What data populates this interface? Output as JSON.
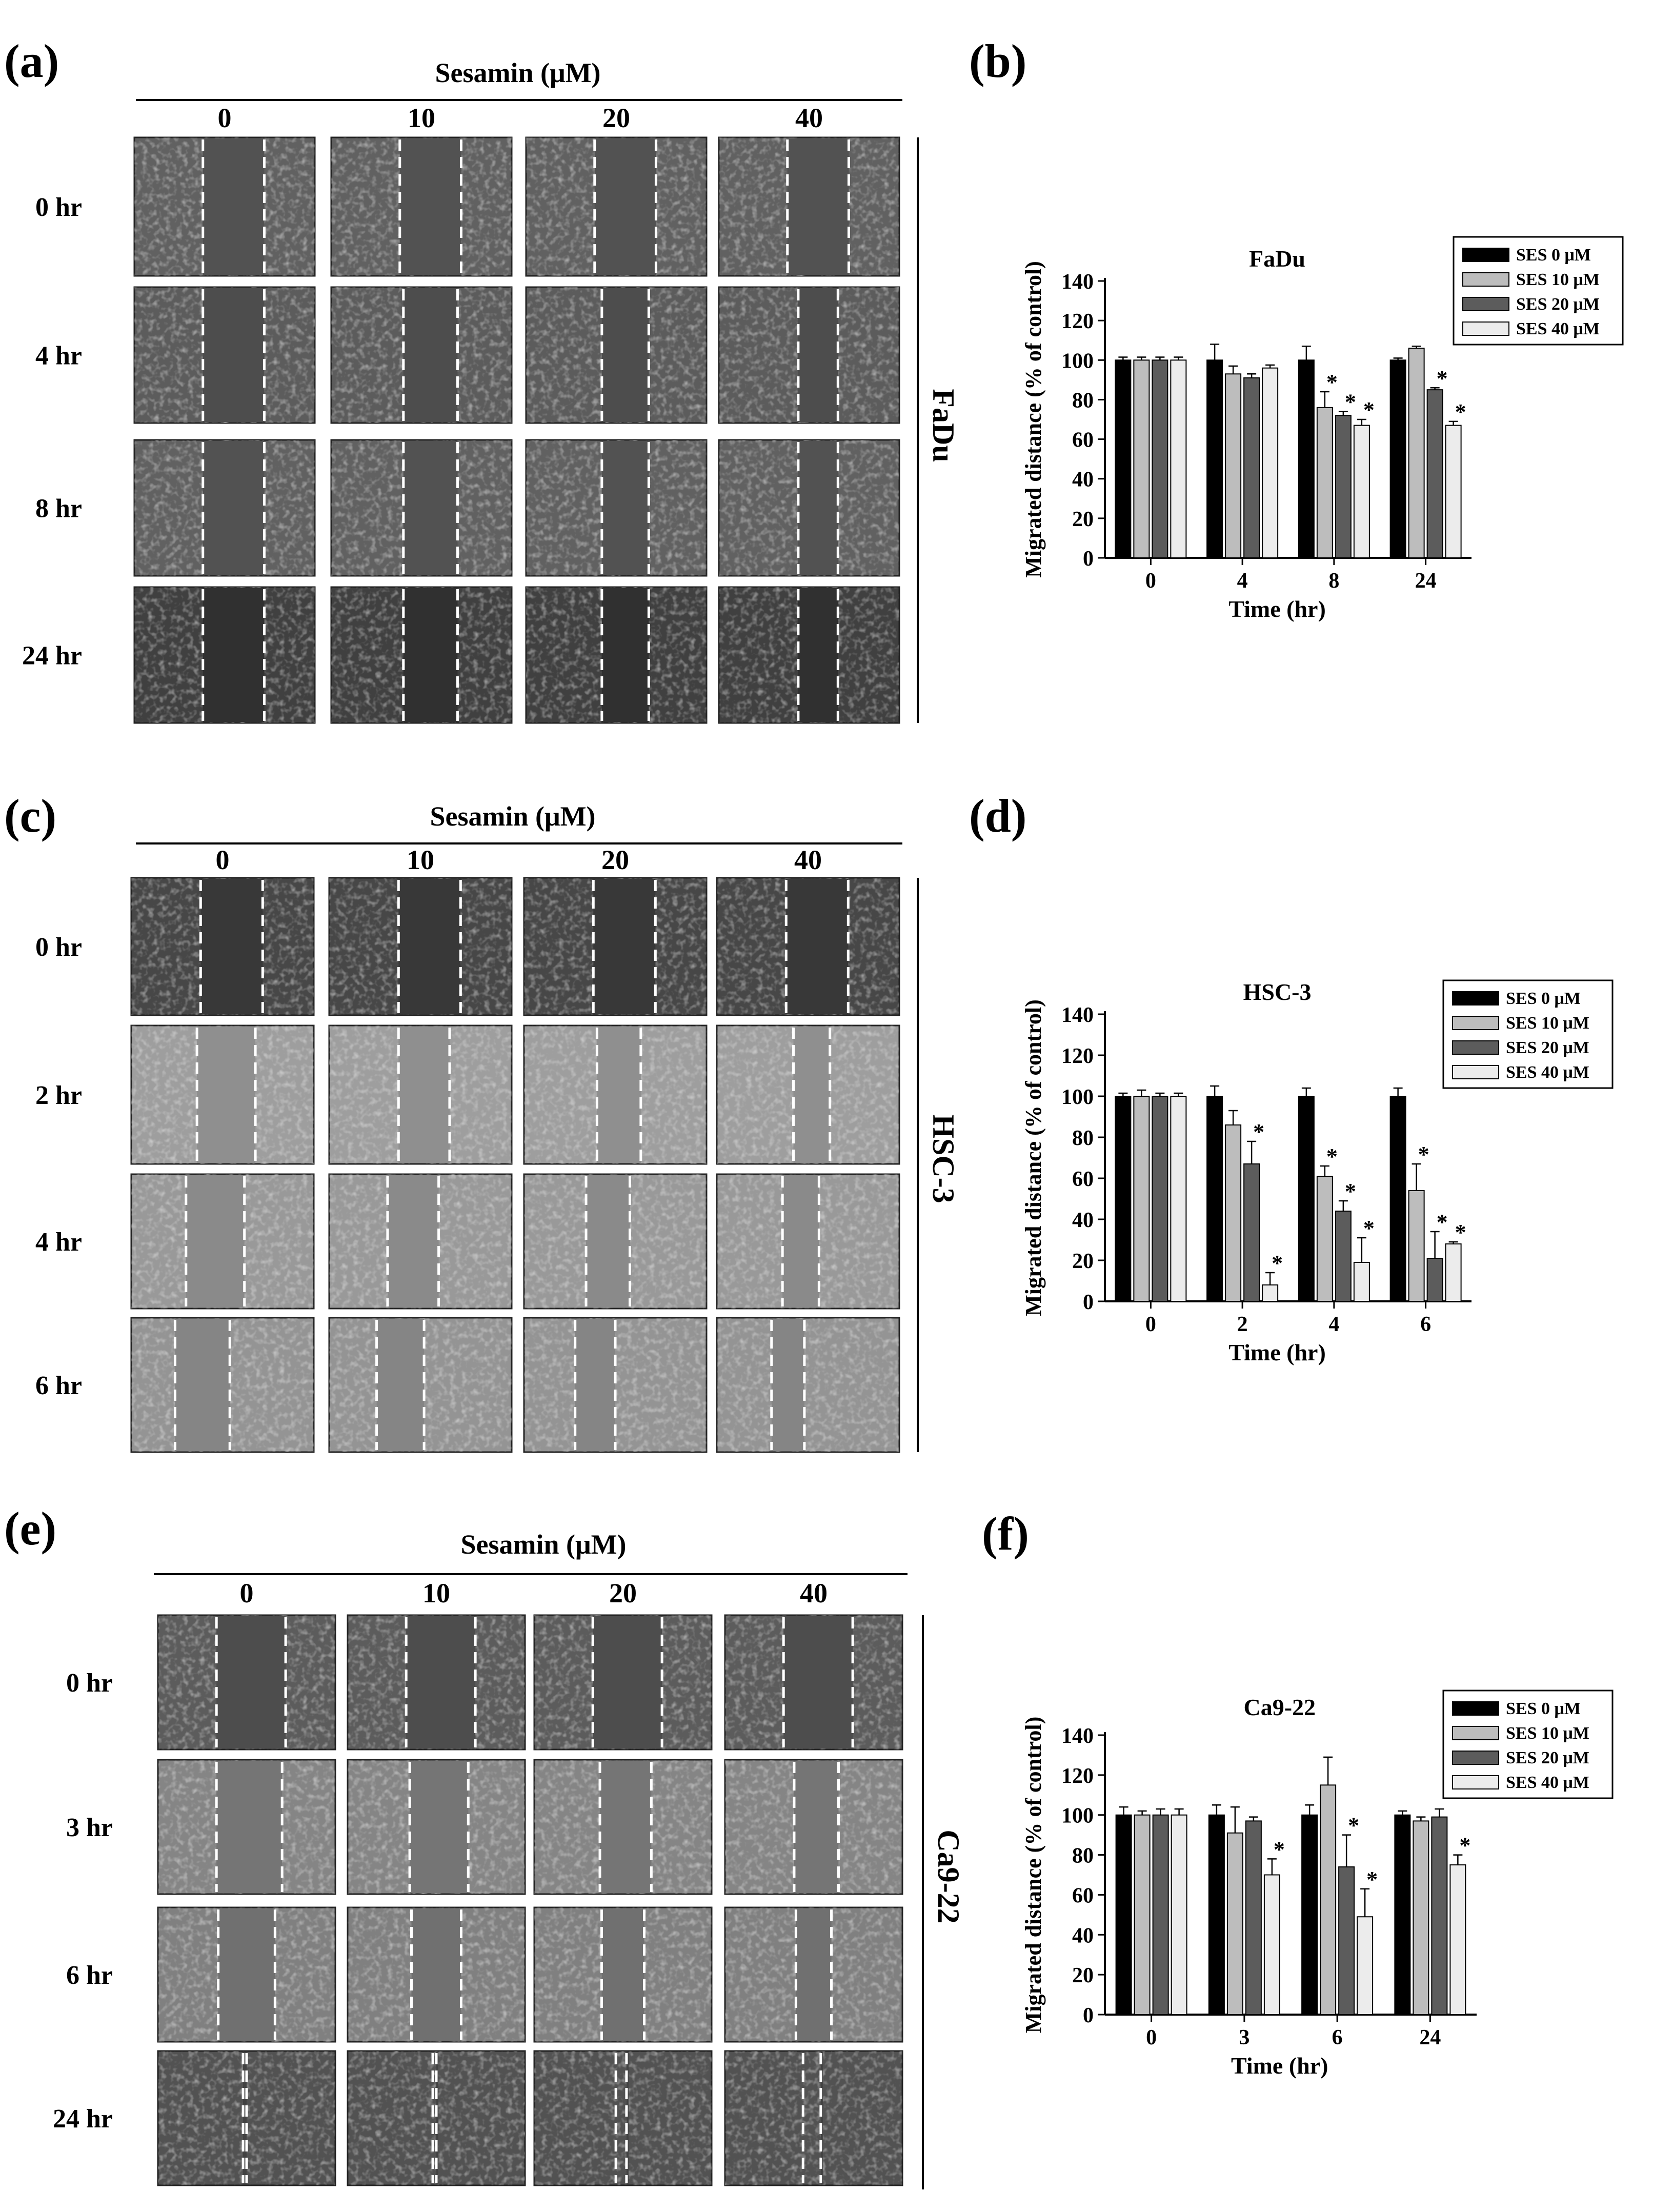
{
  "figure": {
    "panel_labels": [
      "(a)",
      "(b)",
      "(c)",
      "(d)",
      "(e)",
      "(f)"
    ],
    "micro_panels": [
      {
        "label": "(a)",
        "treatment_title": "Sesamin (μM)",
        "concentrations": [
          "0",
          "10",
          "20",
          "40"
        ],
        "times": [
          "0 hr",
          "4 hr",
          "8 hr",
          "24 hr"
        ],
        "cell_line": "FaDu"
      },
      {
        "label": "(c)",
        "treatment_title": "Sesamin (μM)",
        "concentrations": [
          "0",
          "10",
          "20",
          "40"
        ],
        "times": [
          "0 hr",
          "2 hr",
          "4 hr",
          "6 hr"
        ],
        "cell_line": "HSC-3"
      },
      {
        "label": "(e)",
        "treatment_title": "Sesamin (μM)",
        "concentrations": [
          "0",
          "10",
          "20",
          "40"
        ],
        "times": [
          "0 hr",
          "3 hr",
          "6 hr",
          "24 hr"
        ],
        "cell_line": "Ca9-22"
      }
    ]
  },
  "colors": {
    "ses0": "#000000",
    "ses10": "#bdbdbd",
    "ses20": "#5c5c5c",
    "ses40": "#ececec"
  },
  "chart_data": [
    {
      "panel": "(b)",
      "type": "bar",
      "title": "FaDu",
      "xlabel": "Time (hr)",
      "ylabel": "Migrated distance  (% of control)",
      "ylim": [
        0,
        140
      ],
      "yticks": [
        0,
        20,
        40,
        60,
        80,
        100,
        120,
        140
      ],
      "categories": [
        "0",
        "4",
        "8",
        "24"
      ],
      "legend_position": "top-right",
      "series": [
        {
          "name": "SES 0 μM",
          "values": [
            100,
            100,
            100,
            100
          ],
          "errors": [
            1.5,
            8,
            7,
            1
          ]
        },
        {
          "name": "SES 10 μM",
          "values": [
            100,
            93,
            76,
            106
          ],
          "errors": [
            1.5,
            4,
            8,
            1
          ]
        },
        {
          "name": "SES 20 μM",
          "values": [
            100,
            91,
            72,
            85
          ],
          "errors": [
            1.5,
            2,
            2,
            1
          ]
        },
        {
          "name": "SES 40 μM",
          "values": [
            100,
            96,
            67,
            67
          ],
          "errors": [
            1.5,
            1.5,
            3,
            2
          ]
        }
      ],
      "significance": [
        [
          2,
          1
        ],
        [
          2,
          2
        ],
        [
          2,
          3
        ],
        [
          3,
          2
        ],
        [
          3,
          3
        ]
      ],
      "significance_mark": "*"
    },
    {
      "panel": "(d)",
      "type": "bar",
      "title": "HSC-3",
      "xlabel": "Time (hr)",
      "ylabel": "Migrated distance  (% of control)",
      "ylim": [
        0,
        140
      ],
      "yticks": [
        0,
        20,
        40,
        60,
        80,
        100,
        120,
        140
      ],
      "categories": [
        "0",
        "2",
        "4",
        "6"
      ],
      "legend_position": "top-right",
      "series": [
        {
          "name": "SES 0 μM",
          "values": [
            100,
            100,
            100,
            100
          ],
          "errors": [
            1.5,
            5,
            4,
            4
          ]
        },
        {
          "name": "SES 10 μM",
          "values": [
            100,
            86,
            61,
            54
          ],
          "errors": [
            3,
            7,
            5,
            13
          ]
        },
        {
          "name": "SES 20 μM",
          "values": [
            100,
            67,
            44,
            21
          ],
          "errors": [
            1.5,
            11,
            5,
            13
          ]
        },
        {
          "name": "SES 40 μM",
          "values": [
            100,
            8,
            19,
            28
          ],
          "errors": [
            1.5,
            6,
            12,
            1
          ]
        }
      ],
      "significance": [
        [
          1,
          2
        ],
        [
          1,
          3
        ],
        [
          2,
          1
        ],
        [
          2,
          2
        ],
        [
          2,
          3
        ],
        [
          3,
          1
        ],
        [
          3,
          2
        ],
        [
          3,
          3
        ]
      ],
      "significance_mark": "*"
    },
    {
      "panel": "(f)",
      "type": "bar",
      "title": "Ca9-22",
      "xlabel": "Time (hr)",
      "ylabel": "Migrated distance  (% of control)",
      "ylim": [
        0,
        140
      ],
      "yticks": [
        0,
        20,
        40,
        60,
        80,
        100,
        120,
        140
      ],
      "categories": [
        "0",
        "3",
        "6",
        "24"
      ],
      "legend_position": "top-right",
      "series": [
        {
          "name": "SES 0 μM",
          "values": [
            100,
            100,
            100,
            100
          ],
          "errors": [
            4,
            5,
            5,
            2
          ]
        },
        {
          "name": "SES 10 μM",
          "values": [
            100,
            91,
            115,
            97
          ],
          "errors": [
            2,
            13,
            14,
            2
          ]
        },
        {
          "name": "SES 20 μM",
          "values": [
            100,
            97,
            74,
            99
          ],
          "errors": [
            3,
            2,
            16,
            4
          ]
        },
        {
          "name": "SES 40 μM",
          "values": [
            100,
            70,
            49,
            75
          ],
          "errors": [
            3,
            8,
            14,
            5
          ]
        }
      ],
      "significance": [
        [
          1,
          3
        ],
        [
          2,
          2
        ],
        [
          2,
          3
        ],
        [
          3,
          3
        ]
      ],
      "significance_mark": "*"
    }
  ]
}
